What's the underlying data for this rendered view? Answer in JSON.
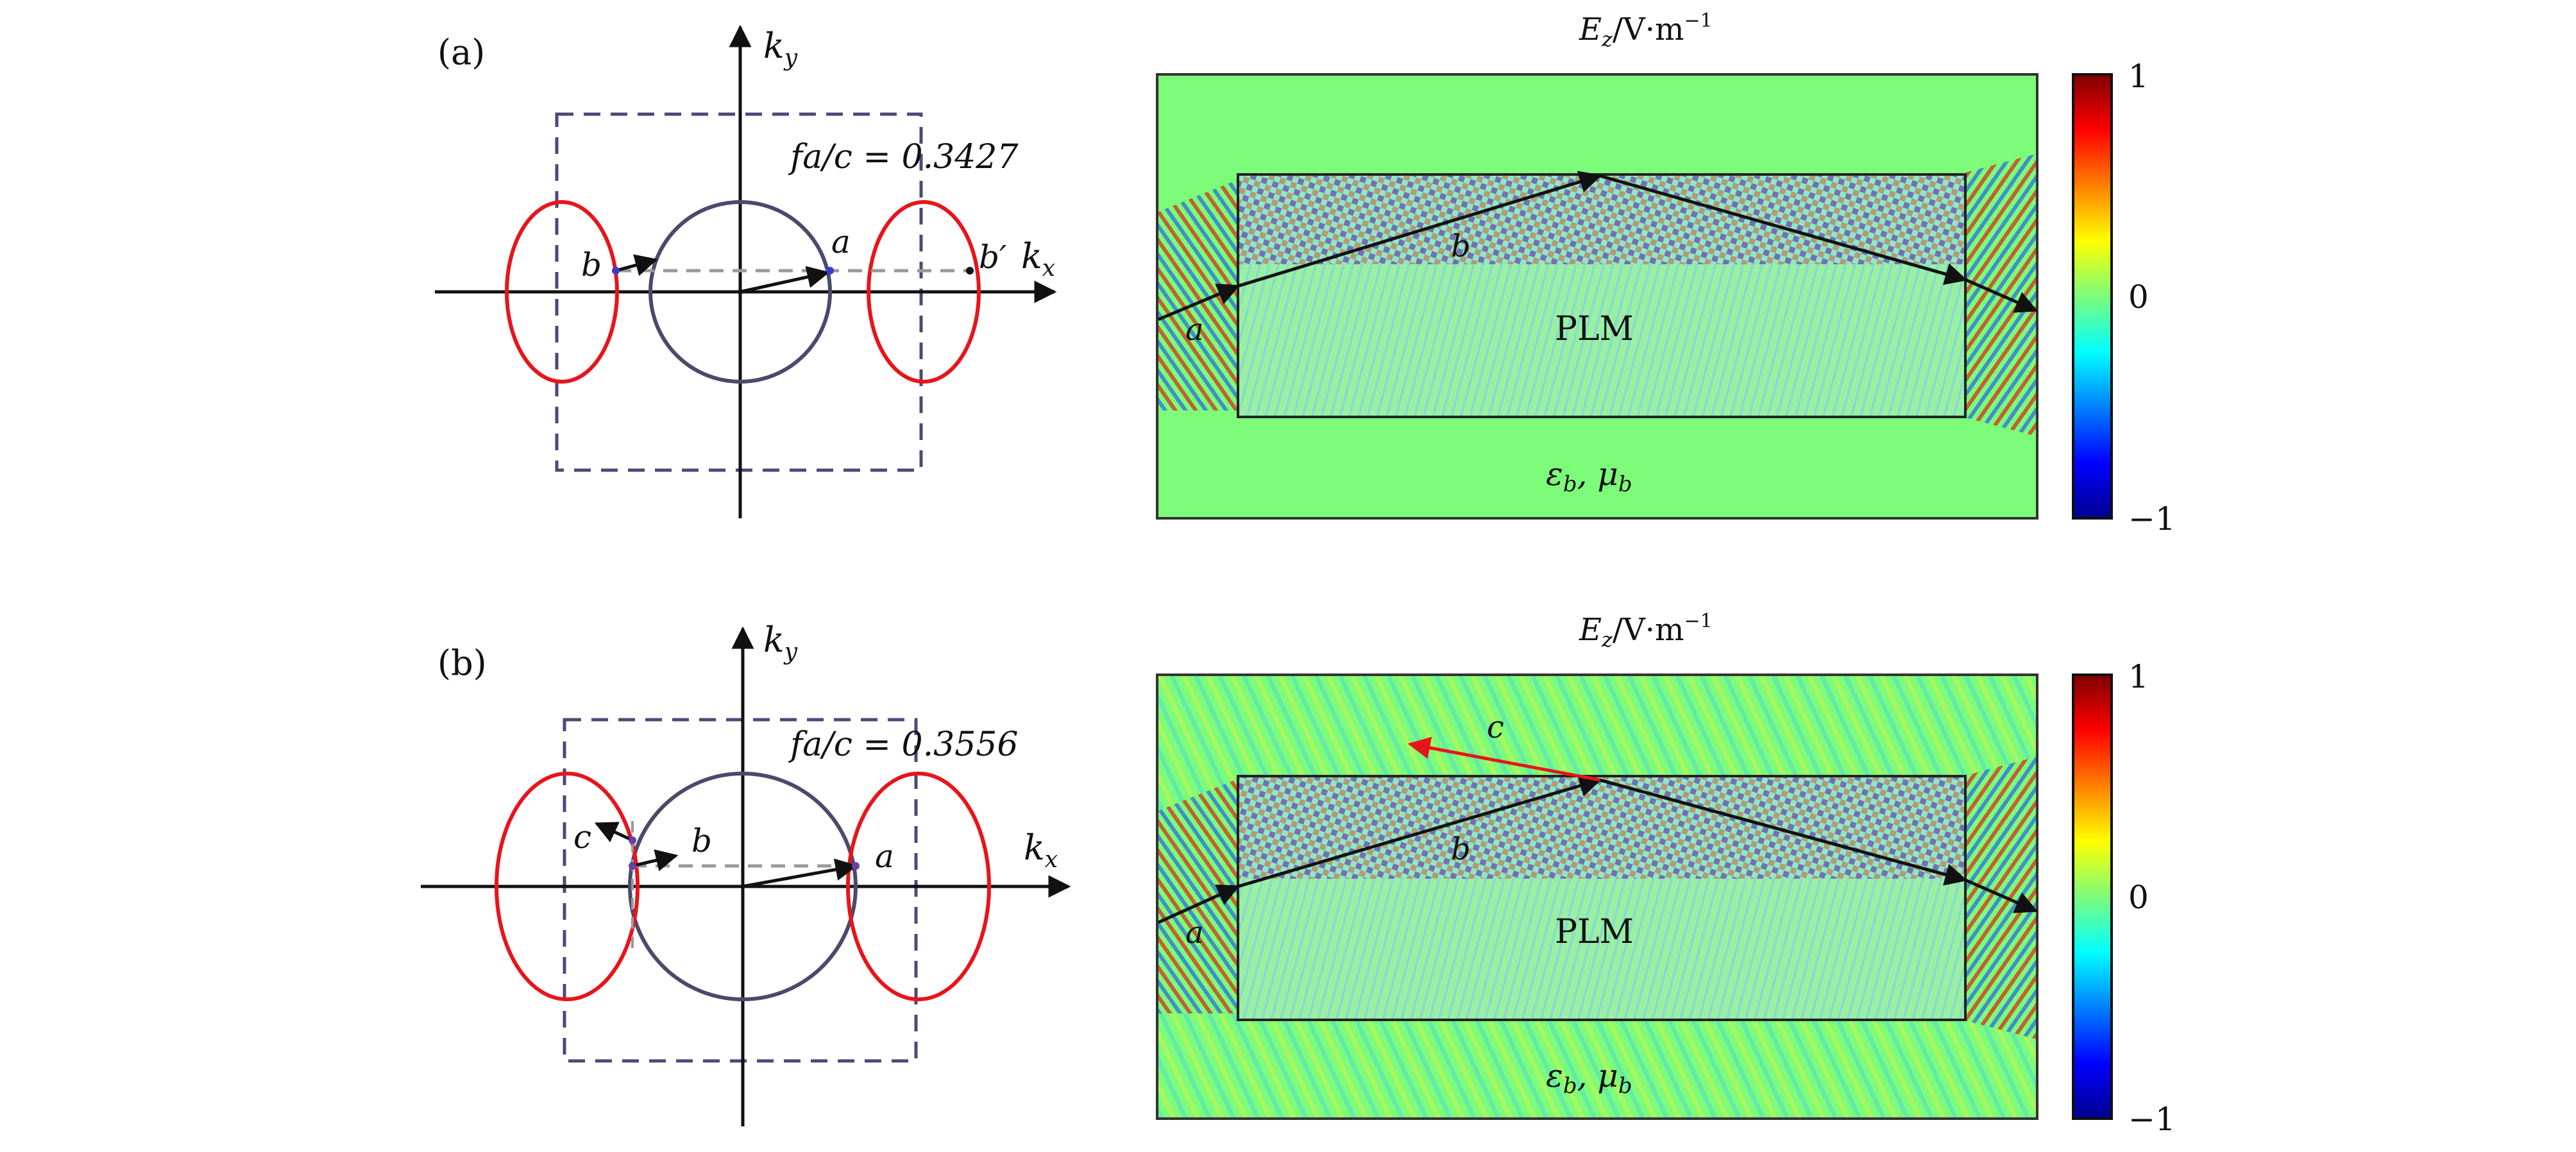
{
  "panels": [
    {
      "label": "(a)",
      "freq_label": "fa/c = 0.3427",
      "axis_x": "k_x",
      "axis_y": "k_y",
      "points": {
        "a": "a",
        "b": "b",
        "bp": "b′"
      },
      "field_title": "E_z/V·m^−1",
      "region_label": "PLM",
      "background_label": "ε_b, μ_b",
      "ray_labels": {
        "a": "a",
        "b": "b"
      },
      "colorbar_ticks": [
        "1",
        "0",
        "−1"
      ]
    },
    {
      "label": "(b)",
      "freq_label": "fa/c = 0.3556",
      "axis_x": "k_x",
      "axis_y": "k_y",
      "points": {
        "a": "a",
        "b": "b",
        "c": "c"
      },
      "field_title": "E_z/V·m^−1",
      "region_label": "PLM",
      "background_label": "ε_b, μ_b",
      "ray_labels": {
        "a": "a",
        "b": "b",
        "c": "c"
      },
      "colorbar_ticks": [
        "1",
        "0",
        "−1"
      ]
    }
  ],
  "colors": {
    "efc_red": "#e8141b",
    "circle": "#4a4a6a",
    "bz_dash": "#4a4a78",
    "field_bg": "#7dfc7a",
    "ray": "#111111",
    "ray_reflected": "#e8141b"
  },
  "icons": {
    "arrow": "black-arrowhead",
    "colorbar": "jet-gradient"
  }
}
